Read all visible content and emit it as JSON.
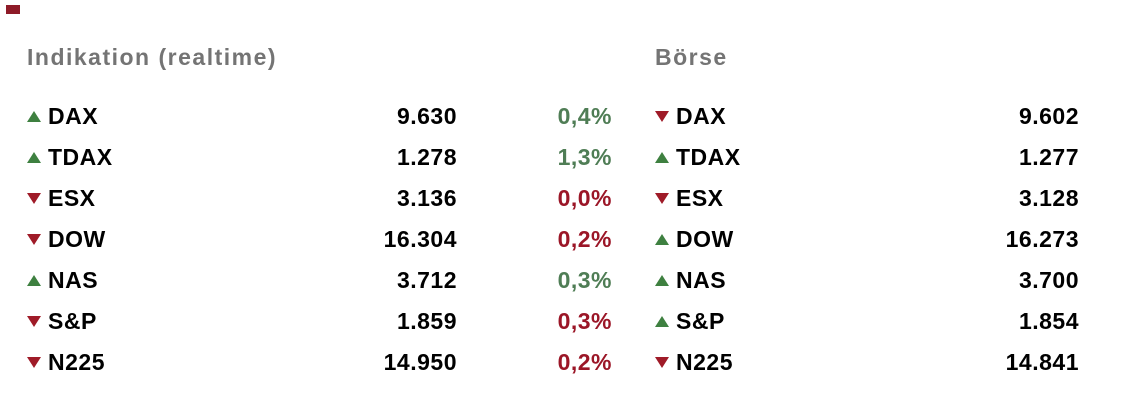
{
  "page": {
    "background": "#ffffff"
  },
  "colors": {
    "up": "#3e8040",
    "down": "#9f1b28",
    "positive_text": "#4f7d55",
    "negative_text": "#9b1627",
    "header": "#747474",
    "value": "#000000",
    "marker": "#8e1b28"
  },
  "sections": [
    {
      "id": "indication",
      "title": "Indikation (realtime)",
      "columns": [
        "trend",
        "name",
        "value",
        "percent"
      ],
      "rows": [
        {
          "name": "DAX",
          "direction": "up",
          "value": "9.630",
          "percent": "0,4%",
          "percent_color": "green"
        },
        {
          "name": "TDAX",
          "direction": "up",
          "value": "1.278",
          "percent": "1,3%",
          "percent_color": "green"
        },
        {
          "name": "ESX",
          "direction": "down",
          "value": "3.136",
          "percent": "0,0%",
          "percent_color": "red"
        },
        {
          "name": "DOW",
          "direction": "down",
          "value": "16.304",
          "percent": "0,2%",
          "percent_color": "red"
        },
        {
          "name": "NAS",
          "direction": "up",
          "value": "3.712",
          "percent": "0,3%",
          "percent_color": "green"
        },
        {
          "name": "S&P",
          "direction": "down",
          "value": "1.859",
          "percent": "0,3%",
          "percent_color": "red"
        },
        {
          "name": "N225",
          "direction": "down",
          "value": "14.950",
          "percent": "0,2%",
          "percent_color": "red"
        }
      ]
    },
    {
      "id": "boerse",
      "title": "Börse",
      "columns": [
        "trend",
        "name",
        "value"
      ],
      "rows": [
        {
          "name": "DAX",
          "direction": "down",
          "value": "9.602"
        },
        {
          "name": "TDAX",
          "direction": "up",
          "value": "1.277"
        },
        {
          "name": "ESX",
          "direction": "down",
          "value": "3.128"
        },
        {
          "name": "DOW",
          "direction": "up",
          "value": "16.273"
        },
        {
          "name": "NAS",
          "direction": "up",
          "value": "3.700"
        },
        {
          "name": "S&P",
          "direction": "up",
          "value": "1.854"
        },
        {
          "name": "N225",
          "direction": "down",
          "value": "14.841"
        }
      ]
    }
  ]
}
